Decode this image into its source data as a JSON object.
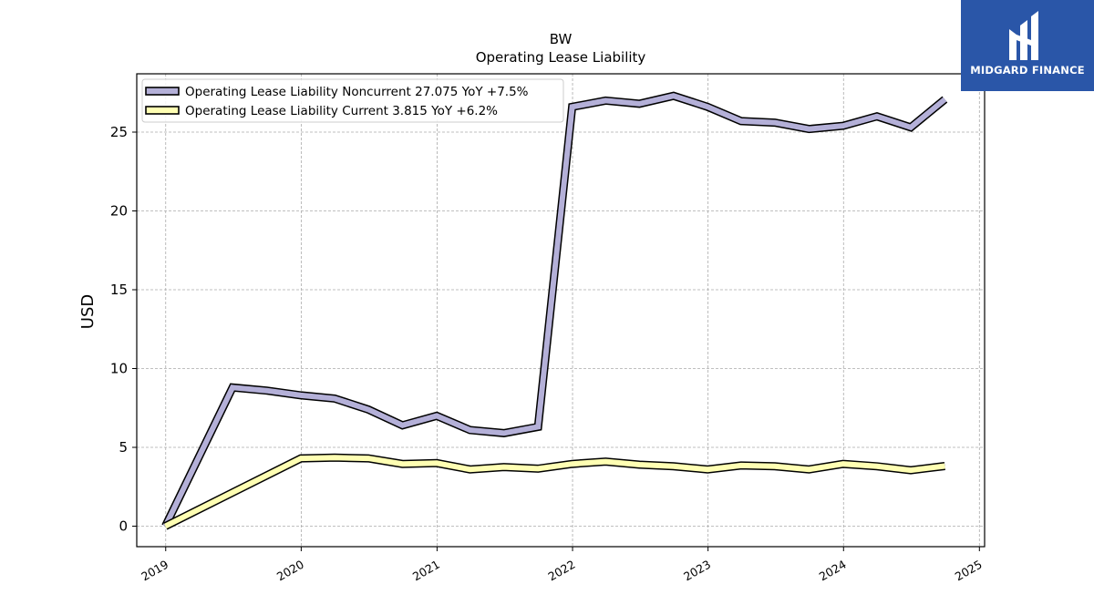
{
  "chart_data": {
    "type": "line",
    "title": "BW",
    "subtitle": "Operating Lease Liability",
    "xlabel": "",
    "ylabel": "USD",
    "xlim": [
      "2018-10-15",
      "2025-01-15"
    ],
    "ylim": [
      -1.3,
      28.7
    ],
    "x_ticks": [
      "2019",
      "2020",
      "2021",
      "2022",
      "2023",
      "2024",
      "2025"
    ],
    "y_ticks": [
      0,
      5,
      10,
      15,
      20,
      25
    ],
    "grid": true,
    "legend_position": "top-left",
    "series": [
      {
        "name": "Operating Lease Liability Noncurrent  27.075 YoY +7.5%",
        "color": "#b4b0d8",
        "points": [
          [
            "2018-12-31",
            0.0
          ],
          [
            "2019-06-30",
            8.8
          ],
          [
            "2019-09-30",
            8.6
          ],
          [
            "2019-12-31",
            8.3
          ],
          [
            "2020-03-31",
            8.1
          ],
          [
            "2020-06-30",
            7.4
          ],
          [
            "2020-09-30",
            6.4
          ],
          [
            "2020-12-31",
            7.0
          ],
          [
            "2021-03-31",
            6.1
          ],
          [
            "2021-06-30",
            5.9
          ],
          [
            "2021-09-30",
            6.3
          ],
          [
            "2021-12-31",
            26.6
          ],
          [
            "2022-03-31",
            27.0
          ],
          [
            "2022-06-30",
            26.8
          ],
          [
            "2022-09-30",
            27.3
          ],
          [
            "2022-12-31",
            26.6
          ],
          [
            "2023-03-31",
            25.7
          ],
          [
            "2023-06-30",
            25.6
          ],
          [
            "2023-09-30",
            25.2
          ],
          [
            "2023-12-31",
            25.4
          ],
          [
            "2024-03-31",
            26.0
          ],
          [
            "2024-06-30",
            25.3
          ],
          [
            "2024-09-30",
            27.075
          ]
        ]
      },
      {
        "name": "Operating Lease Liability Current  3.815 YoY +6.2%",
        "color": "#ffffb3",
        "points": [
          [
            "2018-12-31",
            0.0
          ],
          [
            "2019-12-31",
            4.3
          ],
          [
            "2020-03-31",
            4.35
          ],
          [
            "2020-06-30",
            4.3
          ],
          [
            "2020-09-30",
            3.95
          ],
          [
            "2020-12-31",
            4.0
          ],
          [
            "2021-03-31",
            3.6
          ],
          [
            "2021-06-30",
            3.75
          ],
          [
            "2021-09-30",
            3.65
          ],
          [
            "2021-12-31",
            3.95
          ],
          [
            "2022-03-31",
            4.1
          ],
          [
            "2022-06-30",
            3.9
          ],
          [
            "2022-09-30",
            3.8
          ],
          [
            "2022-12-31",
            3.6
          ],
          [
            "2023-03-31",
            3.85
          ],
          [
            "2023-06-30",
            3.8
          ],
          [
            "2023-09-30",
            3.6
          ],
          [
            "2023-12-31",
            3.95
          ],
          [
            "2024-03-31",
            3.8
          ],
          [
            "2024-06-30",
            3.55
          ],
          [
            "2024-09-30",
            3.815
          ]
        ]
      }
    ]
  },
  "logo": {
    "text": "MIDGARD FINANCE",
    "bg_color": "#2a56a8"
  }
}
